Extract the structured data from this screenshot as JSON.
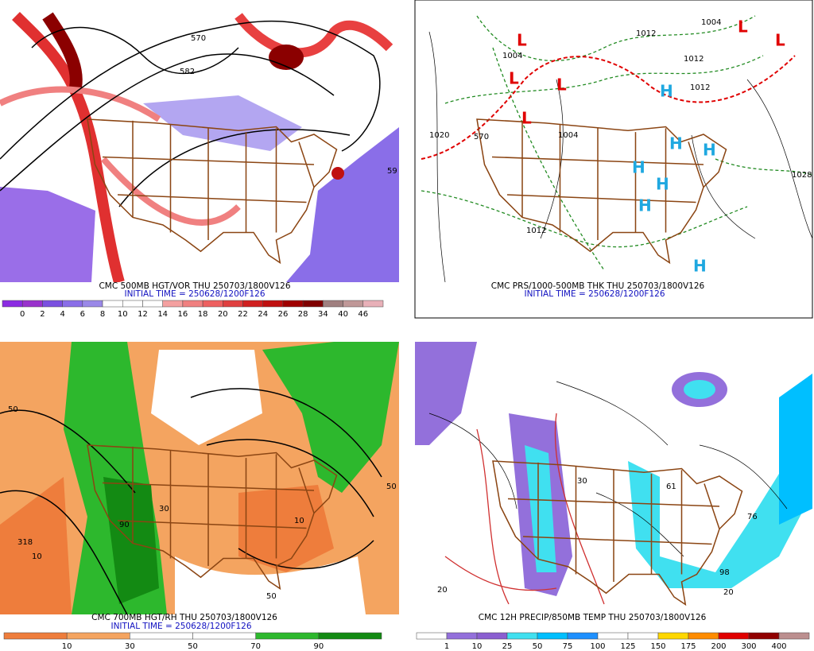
{
  "panels": [
    {
      "title": "CMC 500MB HGT/VOR THU 250703/1800V126",
      "initial_time": "INITIAL TIME = 250628/1200F126",
      "map_labels": [
        "570",
        "582",
        "59"
      ],
      "colorbar": {
        "labels": [
          0,
          2,
          4,
          6,
          8,
          10,
          12,
          14,
          16,
          18,
          20,
          22,
          24,
          26,
          28,
          34,
          40,
          46
        ],
        "colors": [
          "#8b2be2",
          "#9932cc",
          "#7b50e0",
          "#8a6ee8",
          "#9a88e8",
          "#ffffff",
          "#ffffff",
          "#ffffff",
          "#f4a0a0",
          "#f08080",
          "#ee6060",
          "#e04040",
          "#d02020",
          "#c01010",
          "#a00000",
          "#800000",
          "#a08080",
          "#c09898",
          "#e8b0b8"
        ]
      }
    },
    {
      "title": "CMC PRS/1000-500MB THK THU 250703/1800V126",
      "initial_time": "INITIAL TIME = 250628/1200F126",
      "map_labels": [
        "1020",
        "1004",
        "1012",
        "1004",
        "1012",
        "1012",
        "1004",
        "570",
        "1012",
        "1028"
      ],
      "centers": [
        "L",
        "L",
        "L",
        "L",
        "L",
        "L",
        "H",
        "H",
        "H",
        "H",
        "H",
        "H",
        "H"
      ]
    },
    {
      "title": "CMC 700MB HGT/RH THU 250703/1800V126",
      "initial_time": "INITIAL TIME = 250628/1200F126",
      "map_labels": [
        "50",
        "318",
        "10",
        "30",
        "90",
        "50",
        "10",
        "50"
      ],
      "colorbar": {
        "labels": [
          10,
          30,
          50,
          70,
          90
        ],
        "colors": [
          "#ee7d3c",
          "#f4a460",
          "#ffffff",
          "#ffffff",
          "#2db82d",
          "#138a13"
        ]
      }
    },
    {
      "title": "CMC 12H PRECIP/850MB TEMP THU 250703/1800V126",
      "map_labels": [
        "30",
        "20",
        "61",
        "76",
        "98",
        "20"
      ],
      "colorbar": {
        "labels": [
          1,
          10,
          25,
          50,
          75,
          100,
          125,
          150,
          175,
          200,
          300,
          400
        ],
        "colors": [
          "#ffffff",
          "#9370db",
          "#8a5fd0",
          "#40e0f0",
          "#00bfff",
          "#1e90ff",
          "#ffffff",
          "#ffffff",
          "#ffd700",
          "#ff8c00",
          "#e00000",
          "#900000",
          "#bc8f8f"
        ]
      }
    }
  ]
}
